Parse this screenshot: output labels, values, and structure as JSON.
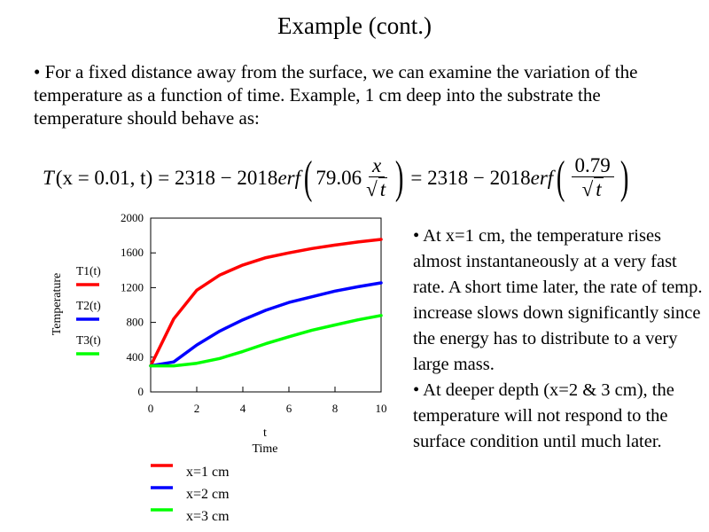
{
  "title": "Example (cont.)",
  "intro": "• For a fixed distance away from the surface, we can examine the variation of the temperature as a function of time.  Example, 1 cm deep into the substrate the temperature should behave as:",
  "equation": {
    "lhs": "T",
    "args": "(x = 0.01, t)",
    "eq1": "= 2318 − 2018",
    "erf": "erf",
    "coef": "79.06",
    "num1": "x",
    "den1": "t",
    "eq2": "= 2318 − 2018",
    "num2": "0.79",
    "den2": "t"
  },
  "side_notes": [
    "• At x=1 cm, the temperature rises almost instantaneously at a very fast rate.  A short time later, the rate of temp. increase slows down significantly since the energy has to distribute to a very large mass.",
    "• At deeper depth (x=2 & 3 cm), the temperature will not respond to the surface condition until much later."
  ],
  "chart_data": {
    "type": "line",
    "xlabel": "t",
    "xlabel2": "Time",
    "ylabel": "Temperature",
    "xlim": [
      0,
      10
    ],
    "ylim": [
      0,
      2000
    ],
    "xticks": [
      0,
      2,
      4,
      6,
      8,
      10
    ],
    "yticks": [
      0,
      400,
      800,
      1200,
      1600,
      2000
    ],
    "grid": false,
    "x": [
      0,
      1,
      2,
      3,
      4,
      5,
      6,
      7,
      8,
      9,
      10
    ],
    "series": [
      {
        "name": "T1(t)",
        "color": "#ff0000",
        "values": [
          300,
          840,
          1170,
          1345,
          1460,
          1545,
          1600,
          1650,
          1690,
          1725,
          1755
        ]
      },
      {
        "name": "T2(t)",
        "color": "#0000ff",
        "values": [
          300,
          345,
          540,
          700,
          830,
          940,
          1030,
          1095,
          1160,
          1210,
          1255
        ]
      },
      {
        "name": "T3(t)",
        "color": "#00ff00",
        "values": [
          300,
          300,
          330,
          385,
          465,
          555,
          635,
          710,
          770,
          830,
          880
        ]
      }
    ],
    "legend": {
      "placement": "below",
      "entries": [
        "x=1 cm",
        "x=2 cm",
        "x=3 cm"
      ]
    }
  }
}
